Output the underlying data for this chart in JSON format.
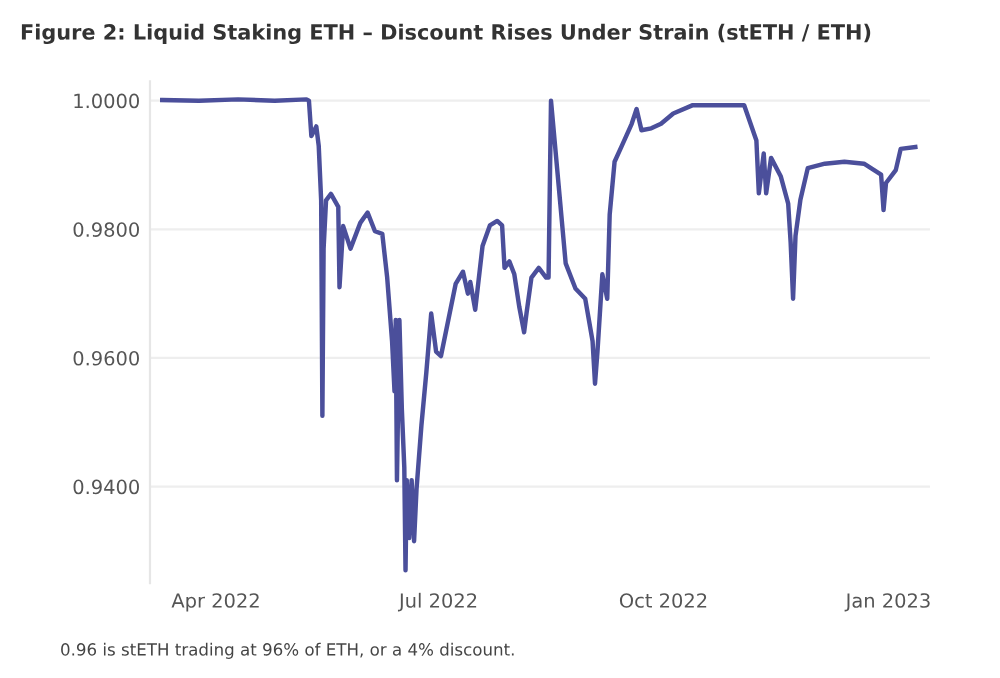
{
  "chart_data": {
    "type": "line",
    "title": "Figure 2: Liquid Staking ETH – Discount Rises Under Strain (stETH / ETH)",
    "annotations": [
      "0.96 is stETH trading at 96% of ETH, or a 4% discount."
    ],
    "x": [
      "2022-03-10",
      "2022-03-25",
      "2022-04-10",
      "2022-04-25",
      "2022-05-08",
      "2022-05-09",
      "2022-05-10",
      "2022-05-12",
      "2022-05-13",
      "2022-05-14",
      "2022-05-14T12:00",
      "2022-05-15",
      "2022-05-16",
      "2022-05-18",
      "2022-05-21",
      "2022-05-21T12:00",
      "2022-05-23",
      "2022-05-26",
      "2022-05-30",
      "2022-06-02",
      "2022-06-05",
      "2022-06-08",
      "2022-06-10",
      "2022-06-12",
      "2022-06-13",
      "2022-06-13T12:00",
      "2022-06-14",
      "2022-06-15",
      "2022-06-16",
      "2022-06-17",
      "2022-06-17T12:00",
      "2022-06-18",
      "2022-06-19",
      "2022-06-20",
      "2022-06-21",
      "2022-06-22",
      "2022-06-24",
      "2022-06-26",
      "2022-06-28",
      "2022-06-30",
      "2022-07-02",
      "2022-07-05",
      "2022-07-08",
      "2022-07-11",
      "2022-07-13",
      "2022-07-14",
      "2022-07-16",
      "2022-07-19",
      "2022-07-22",
      "2022-07-25",
      "2022-07-27",
      "2022-07-28",
      "2022-07-30",
      "2022-08-01",
      "2022-08-03",
      "2022-08-05",
      "2022-08-06",
      "2022-08-08",
      "2022-08-11",
      "2022-08-14",
      "2022-08-15",
      "2022-08-16",
      "2022-08-22",
      "2022-08-26",
      "2022-08-30",
      "2022-09-02",
      "2022-09-03",
      "2022-09-04",
      "2022-09-06",
      "2022-09-08",
      "2022-09-09",
      "2022-09-11",
      "2022-09-14",
      "2022-09-18",
      "2022-09-20",
      "2022-09-22",
      "2022-09-26",
      "2022-09-30",
      "2022-10-05",
      "2022-10-13",
      "2022-11-03",
      "2022-11-08",
      "2022-11-09",
      "2022-11-11",
      "2022-11-12",
      "2022-11-14",
      "2022-11-18",
      "2022-11-21",
      "2022-11-22",
      "2022-11-23",
      "2022-11-24",
      "2022-11-26",
      "2022-11-29",
      "2022-12-06",
      "2022-12-14",
      "2022-12-22",
      "2022-12-29",
      "2022-12-30",
      "2022-12-31",
      "2023-01-04",
      "2023-01-06",
      "2023-01-12"
    ],
    "series": [
      {
        "color": "#4b4f9b",
        "values": [
          1.0001,
          1.0,
          1.0002,
          1.0,
          1.0002,
          1.0,
          0.9945,
          0.996,
          0.993,
          0.9845,
          0.951,
          0.977,
          0.9845,
          0.9855,
          0.9835,
          0.971,
          0.9805,
          0.977,
          0.981,
          0.9826,
          0.9797,
          0.9793,
          0.9725,
          0.9626,
          0.9548,
          0.9659,
          0.941,
          0.9659,
          0.952,
          0.943,
          0.927,
          0.941,
          0.932,
          0.941,
          0.9315,
          0.9396,
          0.9495,
          0.9577,
          0.9669,
          0.961,
          0.9603,
          0.9659,
          0.9715,
          0.9734,
          0.97,
          0.9718,
          0.9675,
          0.9774,
          0.9806,
          0.9813,
          0.9806,
          0.974,
          0.975,
          0.973,
          0.968,
          0.964,
          0.967,
          0.9725,
          0.974,
          0.9725,
          0.9725,
          1.0,
          0.9747,
          0.9708,
          0.9692,
          0.9626,
          0.956,
          0.961,
          0.973,
          0.9692,
          0.9823,
          0.9905,
          0.993,
          0.9964,
          0.9987,
          0.9954,
          0.9957,
          0.9964,
          0.998,
          0.9993,
          0.9993,
          0.9938,
          0.9856,
          0.9918,
          0.9856,
          0.9911,
          0.9882,
          0.984,
          0.978,
          0.9692,
          0.979,
          0.9846,
          0.9895,
          0.9902,
          0.9905,
          0.9902,
          0.9885,
          0.983,
          0.9872,
          0.9892,
          0.9925,
          0.9928
        ]
      }
    ],
    "xlim": [
      "2022-03-05",
      "2023-01-18"
    ],
    "xticks": [
      {
        "value": "2022-04-01",
        "label": "Apr 2022"
      },
      {
        "value": "2022-07-01",
        "label": "Jul 2022"
      },
      {
        "value": "2022-10-01",
        "label": "Oct 2022"
      },
      {
        "value": "2023-01-01",
        "label": "Jan 2023"
      }
    ],
    "ylim": [
      0.925,
      1.003
    ],
    "yticks": [
      {
        "value": 0.94,
        "label": "0.9400"
      },
      {
        "value": 0.96,
        "label": "0.9600"
      },
      {
        "value": 0.98,
        "label": "0.9800"
      },
      {
        "value": 1.0,
        "label": "1.0000"
      }
    ],
    "grid": "y",
    "line_style": "solid",
    "marker": "none"
  }
}
